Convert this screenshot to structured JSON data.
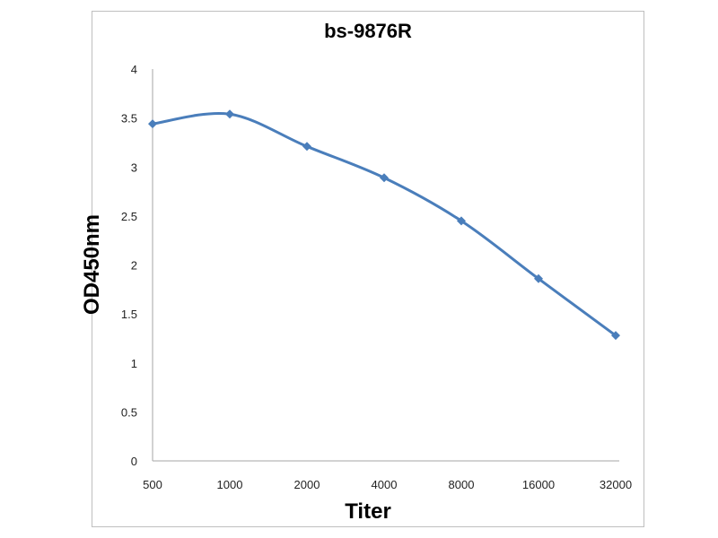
{
  "chart_data": {
    "type": "line",
    "title": "bs-9876R",
    "xlabel": "Titer",
    "ylabel": "OD450nm",
    "categories": [
      "500",
      "1000",
      "2000",
      "4000",
      "8000",
      "16000",
      "32000"
    ],
    "series": [
      {
        "name": "bs-9876R",
        "values": [
          3.44,
          3.54,
          3.21,
          2.89,
          2.45,
          1.86,
          1.28
        ],
        "color": "#4a7ebb"
      }
    ],
    "ylim": [
      0,
      4
    ],
    "yticks": [
      "0",
      "0.5",
      "1",
      "1.5",
      "2",
      "2.5",
      "3",
      "3.5",
      "4"
    ],
    "grid": false,
    "legend": "none"
  }
}
